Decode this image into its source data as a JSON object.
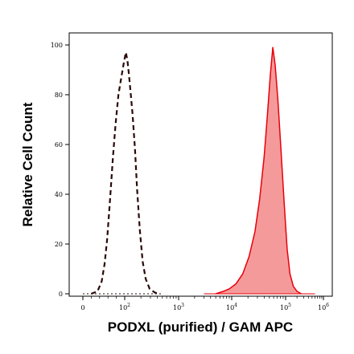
{
  "chart_data": {
    "type": "area",
    "xlabel": "PODXL (purified) / GAM APC",
    "ylabel": "Relative Cell Count",
    "x_scale": "biexponential",
    "ylim": [
      0,
      100
    ],
    "y_ticks": [
      "0",
      "20",
      "40",
      "60",
      "80",
      "100"
    ],
    "x_ticks": [
      {
        "value": 0,
        "label": "0"
      },
      {
        "value": 100,
        "label": "10^2"
      },
      {
        "value": 1000,
        "label": "10^3"
      },
      {
        "value": 10000,
        "label": "10^4"
      },
      {
        "value": 100000,
        "label": "10^5"
      },
      {
        "value": 1000000,
        "label": "10^6"
      }
    ],
    "grid": false,
    "series": [
      {
        "style": "dashed-outline",
        "color": "#2a0a0a",
        "points": [
          [
            20,
            0
          ],
          [
            35,
            1
          ],
          [
            45,
            5
          ],
          [
            52,
            12
          ],
          [
            58,
            22
          ],
          [
            65,
            38
          ],
          [
            72,
            55
          ],
          [
            78,
            68
          ],
          [
            85,
            80
          ],
          [
            92,
            87
          ],
          [
            98,
            93
          ],
          [
            105,
            97
          ],
          [
            112,
            94
          ],
          [
            120,
            88
          ],
          [
            130,
            80
          ],
          [
            140,
            72
          ],
          [
            155,
            58
          ],
          [
            170,
            42
          ],
          [
            190,
            26
          ],
          [
            215,
            13
          ],
          [
            245,
            6
          ],
          [
            290,
            2
          ],
          [
            360,
            0.5
          ],
          [
            450,
            0
          ]
        ]
      },
      {
        "style": "filled",
        "color": "#e8000b",
        "fill": "#f59a9a",
        "points": [
          [
            5000,
            0
          ],
          [
            7000,
            1
          ],
          [
            9000,
            2
          ],
          [
            12000,
            4
          ],
          [
            16000,
            8
          ],
          [
            21000,
            15
          ],
          [
            27000,
            25
          ],
          [
            33000,
            38
          ],
          [
            40000,
            55
          ],
          [
            46000,
            72
          ],
          [
            52000,
            88
          ],
          [
            58000,
            99
          ],
          [
            64000,
            92
          ],
          [
            72000,
            78
          ],
          [
            82000,
            58
          ],
          [
            95000,
            35
          ],
          [
            110000,
            18
          ],
          [
            130000,
            8
          ],
          [
            160000,
            3
          ],
          [
            200000,
            1
          ],
          [
            260000,
            0
          ]
        ]
      }
    ]
  }
}
